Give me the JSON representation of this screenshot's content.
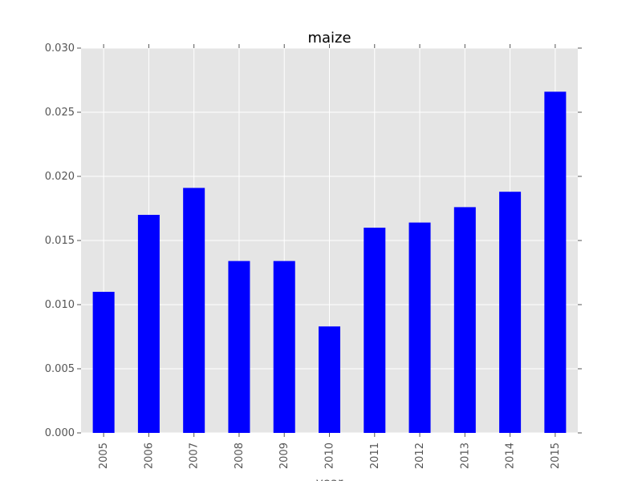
{
  "chart_data": {
    "type": "bar",
    "title": "maize",
    "xlabel": "year",
    "ylabel": "",
    "categories": [
      "2005",
      "2006",
      "2007",
      "2008",
      "2009",
      "2010",
      "2011",
      "2012",
      "2013",
      "2014",
      "2015"
    ],
    "values": [
      0.011,
      0.017,
      0.0191,
      0.0134,
      0.0134,
      0.0083,
      0.016,
      0.0164,
      0.0176,
      0.0188,
      0.0266
    ],
    "ylim": [
      0,
      0.03
    ],
    "yticks": [
      "0.000",
      "0.005",
      "0.010",
      "0.015",
      "0.020",
      "0.025",
      "0.030"
    ],
    "grid": true,
    "legend": "none",
    "colors": {
      "bar": "#0000ff",
      "plot_background": "#e5e5e5",
      "grid": "#ffffff",
      "tick_text": "#555555"
    }
  }
}
